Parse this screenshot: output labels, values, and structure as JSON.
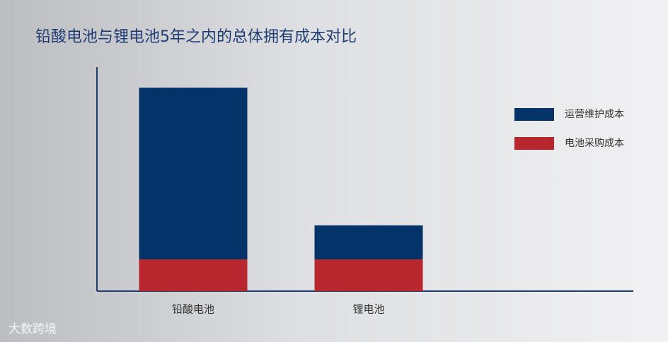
{
  "chart_data": {
    "type": "stacked_bar",
    "title": "铅酸电池与锂电池5年之内的总体拥有成本对比",
    "categories": [
      "铅酸电池",
      "锂电池"
    ],
    "series": [
      {
        "name": "电池采购成本",
        "color": "#b8262e",
        "values": [
          45,
          45
        ]
      },
      {
        "name": "运营维护成本",
        "color": "#04336a",
        "values": [
          243,
          48
        ]
      }
    ],
    "ylim": [
      0,
      317
    ],
    "legend": "right"
  },
  "watermark": "大数跨境"
}
